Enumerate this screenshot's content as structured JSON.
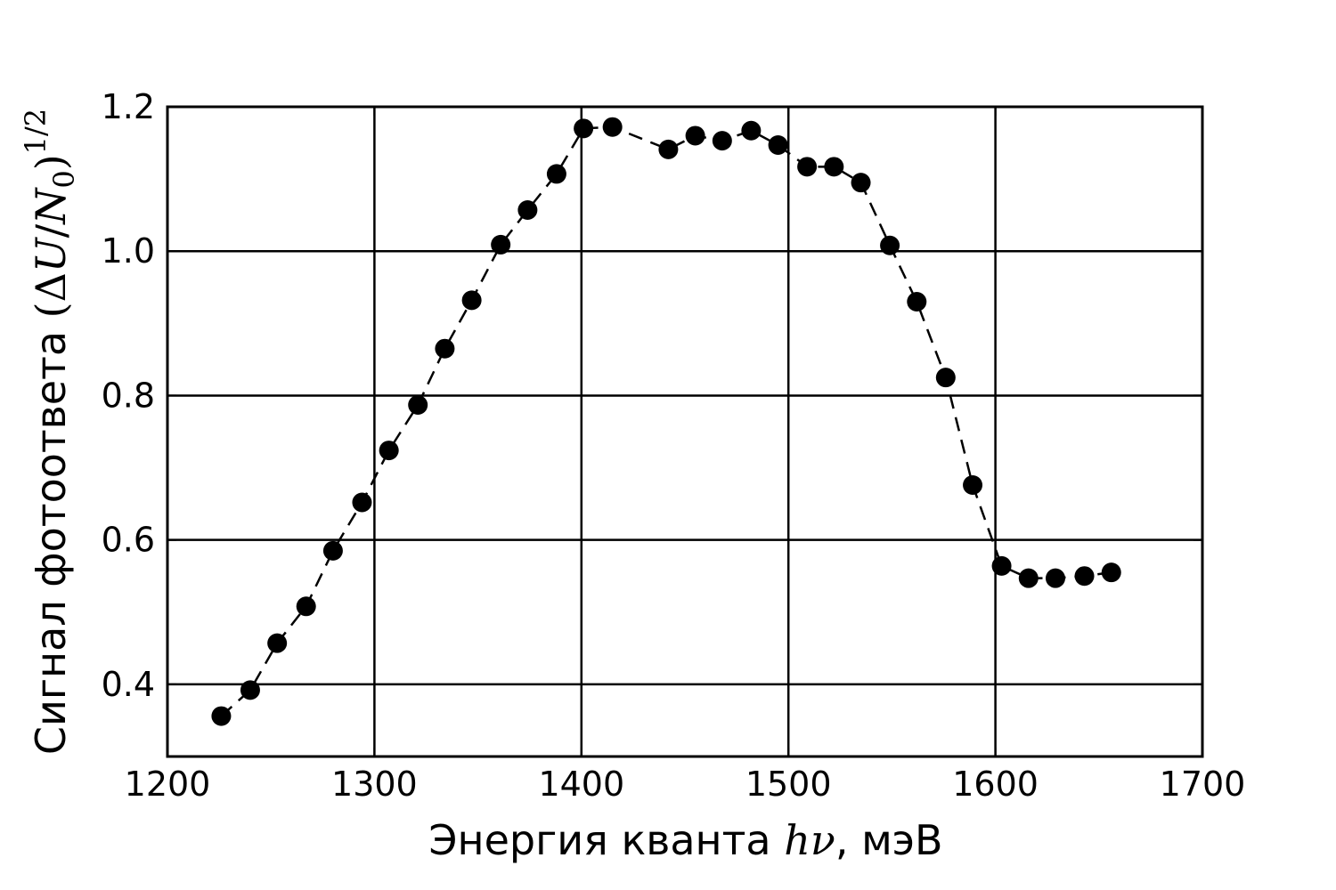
{
  "chart_data": {
    "type": "scatter",
    "xlabel_text": "Энергия кванта ",
    "xlabel_math": "hν",
    "xlabel_unit": ", мэВ",
    "ylabel_text": "Сигнал фотоответа ",
    "ylabel_math_open": "(Δ",
    "ylabel_math_u": "U",
    "ylabel_math_slash": "/",
    "ylabel_math_n": "N",
    "ylabel_math_sub": "0",
    "ylabel_math_close": ")",
    "ylabel_math_sup": "1/2",
    "xlim": [
      1200,
      1700
    ],
    "ylim": [
      0.3,
      1.2
    ],
    "x_ticks": [
      "1200",
      "1300",
      "1400",
      "1500",
      "1600",
      "1700"
    ],
    "y_ticks": [
      "0.4",
      "0.6",
      "0.8",
      "1.0",
      "1.2"
    ],
    "x_tick_values": [
      1200,
      1300,
      1400,
      1500,
      1600,
      1700
    ],
    "y_tick_values": [
      0.4,
      0.6,
      0.8,
      1.0,
      1.2
    ],
    "grid": true,
    "marker_color": "#000000",
    "line_style": "dashed",
    "series": [
      {
        "x": [
          1226,
          1240,
          1253,
          1267,
          1280,
          1294,
          1307,
          1321,
          1334,
          1347,
          1361,
          1374,
          1388,
          1401,
          1415,
          1442,
          1455,
          1468,
          1482,
          1495,
          1509,
          1522,
          1535,
          1549,
          1562,
          1576,
          1589,
          1603,
          1616,
          1629,
          1643,
          1656
        ],
        "y": [
          0.356,
          0.392,
          0.457,
          0.508,
          0.585,
          0.652,
          0.724,
          0.787,
          0.865,
          0.932,
          1.009,
          1.057,
          1.107,
          1.17,
          1.172,
          1.141,
          1.16,
          1.153,
          1.167,
          1.147,
          1.117,
          1.117,
          1.095,
          1.008,
          0.93,
          0.825,
          0.676,
          0.564,
          0.547,
          0.547,
          0.55,
          0.555
        ]
      }
    ]
  }
}
